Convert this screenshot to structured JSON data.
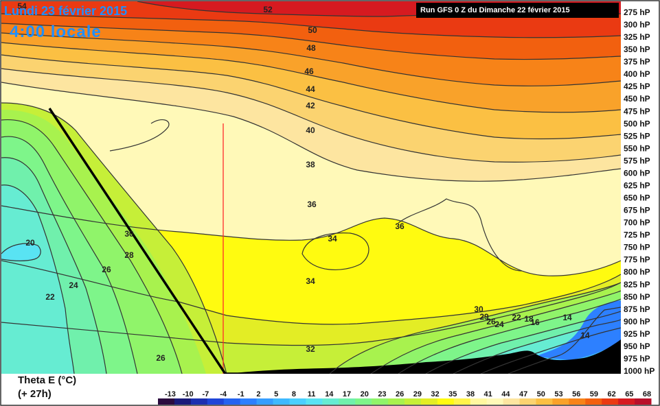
{
  "header": {
    "date": "Lundi 23 février 2015",
    "local_time": "4:00 locale",
    "run": "Run GFS 0 Z du Dimanche 22 février 2015"
  },
  "footer": {
    "parameter": "Theta E (°C)",
    "forecast": "(+ 27h)"
  },
  "chart_data": {
    "type": "heatmap",
    "variable": "Theta E (°C)",
    "y_axis": {
      "levels_hpa": [
        275,
        300,
        325,
        350,
        375,
        400,
        425,
        450,
        475,
        500,
        525,
        550,
        575,
        600,
        625,
        650,
        675,
        700,
        725,
        750,
        775,
        800,
        825,
        850,
        875,
        900,
        925,
        950,
        975,
        1000
      ],
      "tick_labels": [
        "275 hP",
        "300 hP",
        "325 hP",
        "350 hP",
        "375 hP",
        "400 hP",
        "425 hP",
        "450 hP",
        "475 hP",
        "500 hP",
        "525 hP",
        "550 hP",
        "575 hP",
        "600 hP",
        "625 hP",
        "650 hP",
        "675 hP",
        "700 hP",
        "725 hP",
        "750 hP",
        "775 hP",
        "800 hP",
        "825 hP",
        "850 hP",
        "875 hP",
        "900 hP",
        "925 hP",
        "950 hP",
        "975 hP",
        "1000 hP"
      ]
    },
    "colorbar": {
      "ticks": [
        -13,
        -10,
        -7,
        -4,
        -1,
        2,
        5,
        8,
        11,
        14,
        17,
        20,
        23,
        26,
        29,
        32,
        35,
        38,
        41,
        44,
        47,
        50,
        53,
        56,
        59,
        62,
        65,
        68
      ],
      "colors": [
        "#2b0b3f",
        "#1a1a7a",
        "#1c2fb0",
        "#1f45d8",
        "#2563f0",
        "#2d80ff",
        "#369eff",
        "#3fb9ff",
        "#4bd0ff",
        "#59e3f3",
        "#66ecd2",
        "#70f0ac",
        "#7ef58a",
        "#90f46a",
        "#a8f24e",
        "#c6ef38",
        "#e3ed25",
        "#fffb10",
        "#fff44a",
        "#fff8a0",
        "#fff9b8",
        "#fde5a0",
        "#fbd370",
        "#fbc043",
        "#f9a22a",
        "#f78318",
        "#f2600f",
        "#ea3a12",
        "#d61a20",
        "#b80f2a"
      ]
    },
    "contours": [
      {
        "value": 20,
        "label": "20"
      },
      {
        "value": 22,
        "label": "22"
      },
      {
        "value": 24,
        "label": "24"
      },
      {
        "value": 26,
        "label": "26"
      },
      {
        "value": 28,
        "label": "28"
      },
      {
        "value": 30,
        "label": "30"
      },
      {
        "value": 32,
        "label": "32"
      },
      {
        "value": 34,
        "label": "34"
      },
      {
        "value": 36,
        "label": "36"
      },
      {
        "value": 38,
        "label": "38"
      },
      {
        "value": 40,
        "label": "40"
      },
      {
        "value": 42,
        "label": "42"
      },
      {
        "value": 44,
        "label": "44"
      },
      {
        "value": 46,
        "label": "46"
      },
      {
        "value": 48,
        "label": "48"
      },
      {
        "value": 50,
        "label": "50"
      },
      {
        "value": 52,
        "label": "52"
      },
      {
        "value": 54,
        "label": "54"
      }
    ],
    "annotations": [
      "30",
      "29",
      "26",
      "24",
      "22",
      "18",
      "16",
      "14",
      "14"
    ]
  }
}
